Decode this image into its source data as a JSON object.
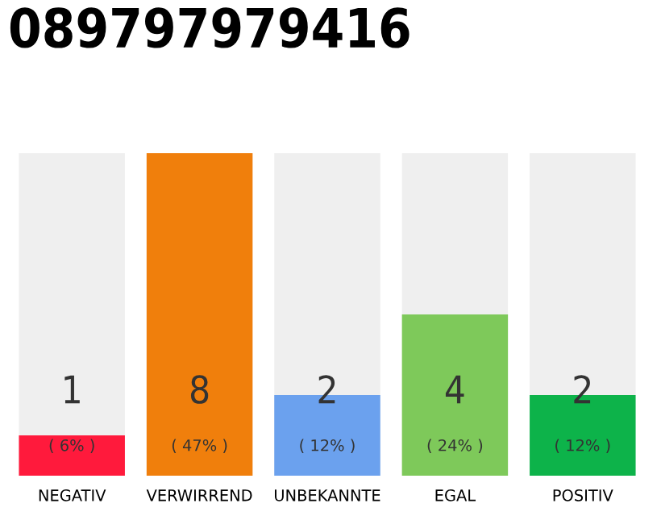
{
  "chart_data": {
    "type": "bar",
    "title": "089797979416",
    "categories": [
      "NEGATIV",
      "VERWIRREND",
      "UNBEKANNTE",
      "EGAL",
      "POSITIV"
    ],
    "values": [
      1,
      8,
      2,
      4,
      2
    ],
    "colors": [
      "#ff1a3c",
      "#f07f0c",
      "#6ba1ee",
      "#7ec95a",
      "#0db34a"
    ],
    "data_labels": true,
    "annotations": [
      "( 6% )",
      "( 47% )",
      "( 12% )",
      "( 24% )",
      "( 12% )"
    ],
    "grid": false,
    "legend": false
  }
}
